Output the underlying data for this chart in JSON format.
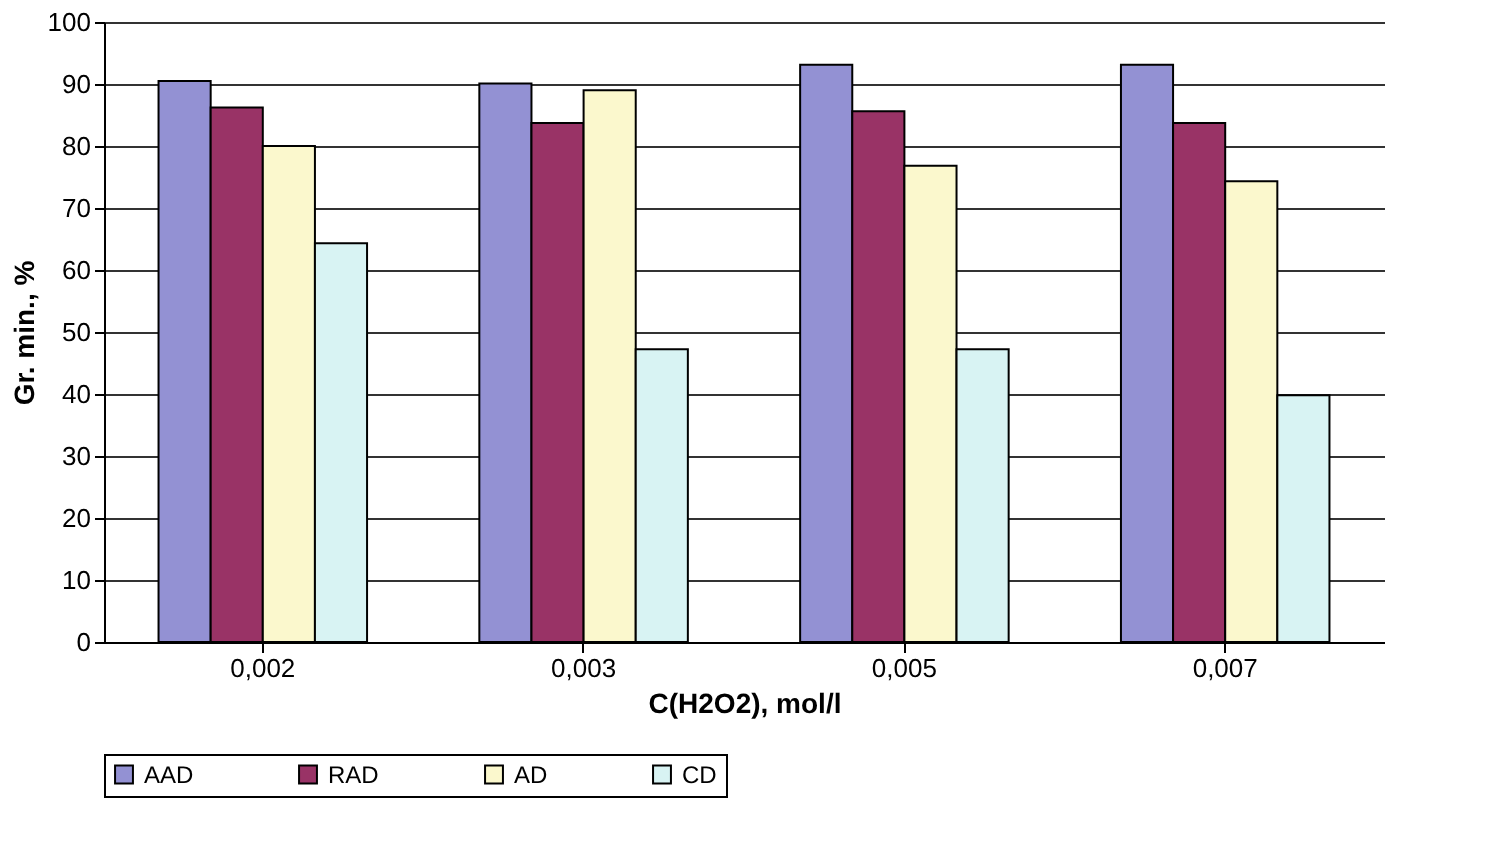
{
  "chart_data": {
    "type": "bar",
    "xlabel": "C(H2O2), mol/l",
    "ylabel": "Gr. min., %",
    "categories": [
      "0,002",
      "0,003",
      "0,005",
      "0,007"
    ],
    "series": [
      {
        "name": "AAD",
        "color": "#9391d3",
        "values": [
          90.5,
          90.1,
          93.1,
          93.1
        ]
      },
      {
        "name": "RAD",
        "color": "#993366",
        "values": [
          86.2,
          83.7,
          85.6,
          83.7
        ]
      },
      {
        "name": "AD",
        "color": "#fbf8cd",
        "values": [
          80,
          89,
          76.8,
          74.3
        ]
      },
      {
        "name": "CD",
        "color": "#d8f3f3",
        "values": [
          64.3,
          47.2,
          47.2,
          39.8
        ]
      }
    ],
    "ylim": [
      0,
      100
    ],
    "yticks": [
      0,
      10,
      20,
      30,
      40,
      50,
      60,
      70,
      80,
      90,
      100
    ],
    "grid": "y",
    "legend": "bottom"
  }
}
